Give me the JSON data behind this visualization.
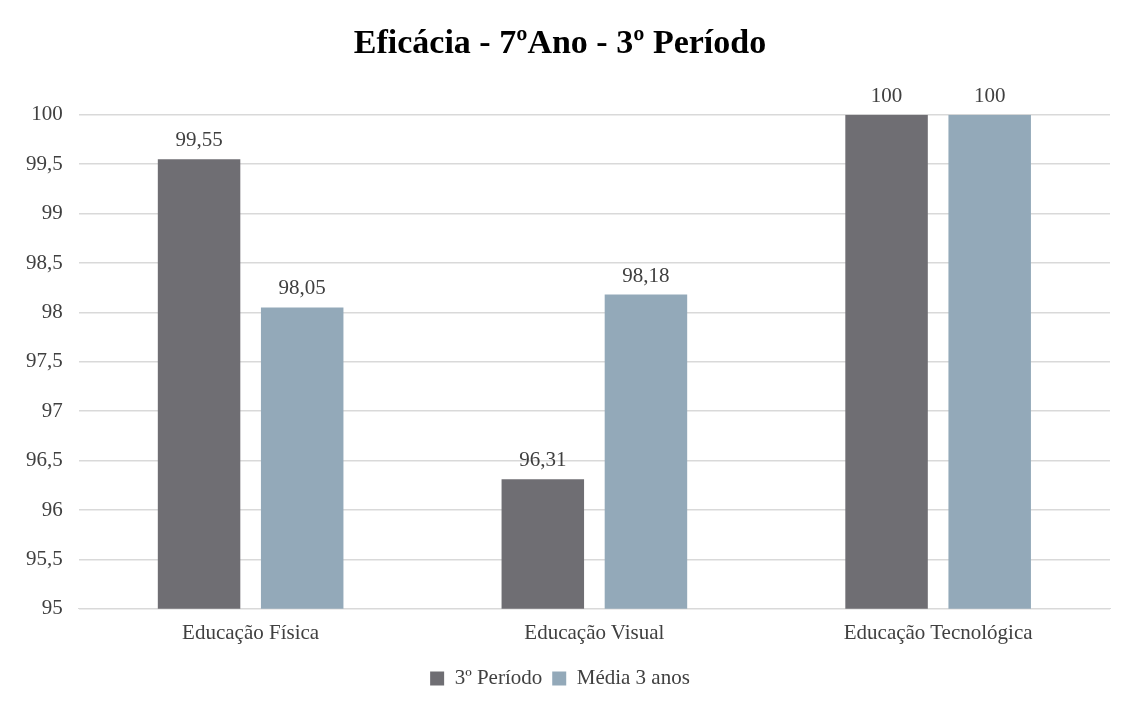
{
  "chart_data": {
    "type": "bar",
    "title": "Eficácia - 7ºAno - 3º Período",
    "categories": [
      "Educação Física",
      "Educação Visual",
      "Educação Tecnológica"
    ],
    "series": [
      {
        "name": "3º Período",
        "color": "#6f6e73",
        "values": [
          99.55,
          96.31,
          100
        ],
        "value_labels": [
          "99,55",
          "96,31",
          "100"
        ]
      },
      {
        "name": "Média 3 anos",
        "color": "#93a9b9",
        "values": [
          98.05,
          98.18,
          100
        ],
        "value_labels": [
          "98,05",
          "98,18",
          "100"
        ]
      }
    ],
    "ylim": [
      95,
      100
    ],
    "yticks": [
      95,
      {
        "value": 95.5,
        "label": "95,5"
      },
      96,
      {
        "value": 96.5,
        "label": "96,5"
      },
      97,
      {
        "value": 97.5,
        "label": "97,5"
      },
      98,
      {
        "value": 98.5,
        "label": "98,5"
      },
      99,
      {
        "value": 99.5,
        "label": "99,5"
      },
      100
    ],
    "grid": "y",
    "legend": "bottom"
  }
}
